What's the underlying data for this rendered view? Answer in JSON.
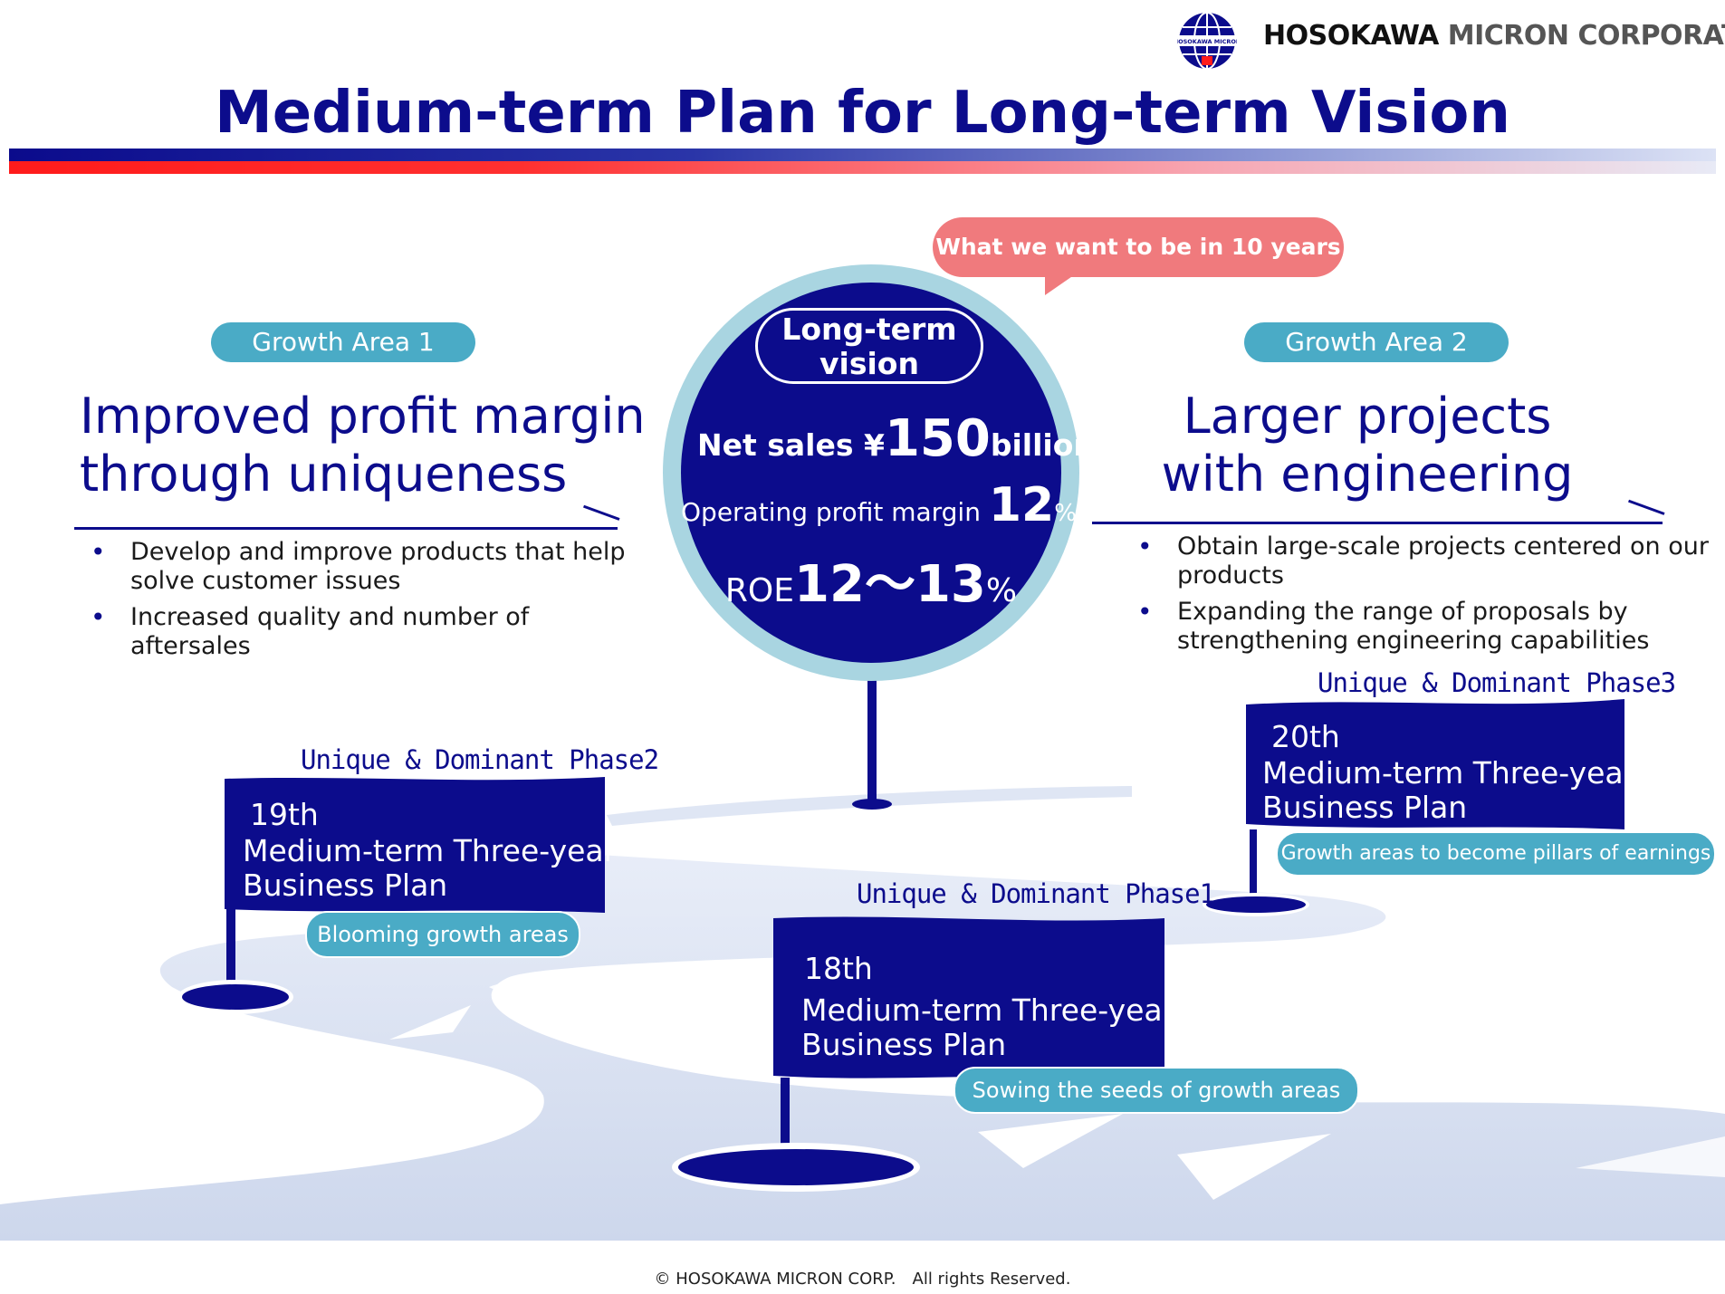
{
  "header": {
    "company_name_part1": "HOSOKAWA",
    "company_name_part2": "MICRON CORPORATION",
    "logo_text": "HOSOKAWA MICRON"
  },
  "title": "Medium-term Plan for Long-term Vision",
  "growth_area_1": {
    "label": "Growth Area 1",
    "heading_line1": "Improved profit margin",
    "heading_line2": "through uniqueness",
    "bullets": [
      "Develop and improve products that help solve customer issues",
      "Increased quality and number of aftersales"
    ]
  },
  "growth_area_2": {
    "label": "Growth Area 2",
    "heading_line1": "Larger projects",
    "heading_line2": "with engineering",
    "bullets": [
      "Obtain large-scale projects centered on our products",
      "Expanding the range of proposals by strengthening engineering capabilities"
    ]
  },
  "vision": {
    "callout": "What we want to be in 10 years",
    "label_line1": "Long-term",
    "label_line2": "vision",
    "net_sales_prefix": "Net sales ¥",
    "net_sales_value": "150",
    "net_sales_unit": "billion",
    "opm_label": "Operating profit margin ",
    "opm_value": "12",
    "opm_unit": "%",
    "roe_label": "ROE",
    "roe_value": "12～13",
    "roe_unit": "%"
  },
  "plans": {
    "phase1": {
      "phase_label": "Unique & Dominant Phase1",
      "ordinal": "18th",
      "line1": "Medium-term Three-year",
      "line2": "Business Plan",
      "caption": "Sowing the seeds of growth areas"
    },
    "phase2": {
      "phase_label": "Unique & Dominant Phase2",
      "ordinal": "19th",
      "line1": "Medium-term Three-year",
      "line2": "Business Plan",
      "caption": "Blooming growth areas"
    },
    "phase3": {
      "phase_label": "Unique & Dominant Phase3",
      "ordinal": "20th",
      "line1": "Medium-term Three-year",
      "line2": "Business Plan",
      "caption": "Growth areas to become pillars of earnings"
    }
  },
  "footer": "© HOSOKAWA MICRON CORP.　All rights Reserved.",
  "colors": {
    "navy": "#0c0c8c",
    "teal": "#4aabc6",
    "salmon": "#f07a7d",
    "red": "#ff1b1b"
  }
}
